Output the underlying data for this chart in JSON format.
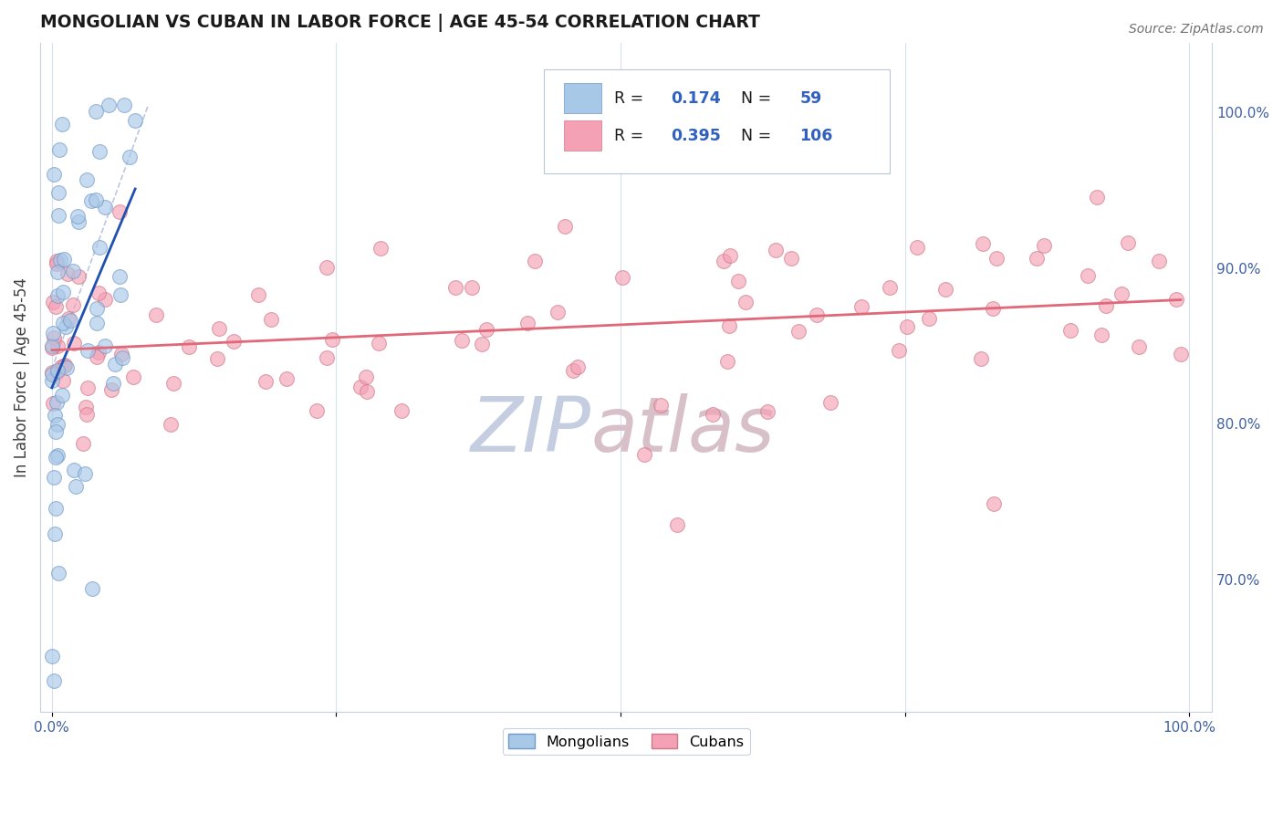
{
  "title": "MONGOLIAN VS CUBAN IN LABOR FORCE | AGE 45-54 CORRELATION CHART",
  "source_text": "Source: ZipAtlas.com",
  "ylabel": "In Labor Force | Age 45-54",
  "legend_r1": "0.174",
  "legend_n1": "59",
  "legend_r2": "0.395",
  "legend_n2": "106",
  "mongolian_color": "#a8c8e8",
  "cuban_color": "#f4a0b5",
  "mongolian_line_color": "#2050b0",
  "cuban_line_color": "#e06878",
  "mongolian_dot_edge": "#7098c8",
  "cuban_dot_edge": "#d07888",
  "watermark_zip_color": "#c5cde0",
  "watermark_atlas_color": "#d8c0c8",
  "title_color": "#1a1a1a",
  "axis_tick_color": "#4060a0",
  "grid_color": "#d0d8e8",
  "legend_text_color": "#1a1a1a",
  "legend_value_color": "#3060c0",
  "ylim_low": 0.615,
  "ylim_high": 1.045,
  "xlim_low": -0.01,
  "xlim_high": 1.02
}
